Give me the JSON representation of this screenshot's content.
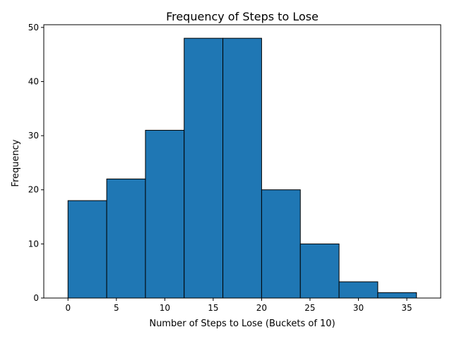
{
  "chart_data": {
    "type": "bar",
    "title": "Frequency of Steps to Lose",
    "xlabel": "Number of Steps to Lose (Buckets of 10)",
    "ylabel": "Frequency",
    "bin_edges": [
      0,
      4,
      8,
      12,
      16,
      20,
      24,
      28,
      32,
      36
    ],
    "values": [
      18,
      22,
      31,
      48,
      48,
      20,
      10,
      3,
      1
    ],
    "xlim": [
      -2.5,
      38.5
    ],
    "ylim": [
      0,
      50.5
    ],
    "xticks": [
      0,
      5,
      10,
      15,
      20,
      25,
      30,
      35
    ],
    "yticks": [
      0,
      10,
      20,
      30,
      40,
      50
    ],
    "grid": false,
    "colors": {
      "bar_fill": "#1f77b4",
      "bar_edge": "#000000"
    }
  }
}
